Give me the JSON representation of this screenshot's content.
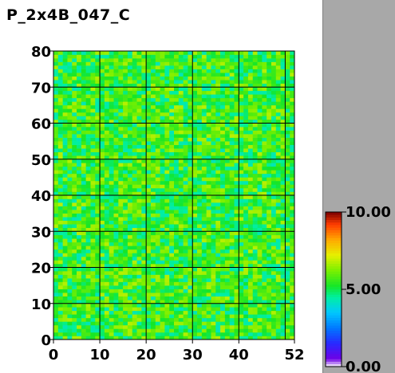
{
  "title": "P_2x4B_047_C",
  "chart_data": {
    "type": "heatmap",
    "title": "P_2x4B_047_C",
    "xlabel": "",
    "ylabel": "",
    "x_range": [
      0,
      52
    ],
    "y_range": [
      0,
      80
    ],
    "x_ticks": [
      0,
      10,
      20,
      30,
      40,
      52
    ],
    "x_tick_labels": [
      "0",
      "10",
      "20",
      "30",
      "40",
      "52"
    ],
    "y_ticks": [
      0,
      10,
      20,
      30,
      40,
      50,
      60,
      70,
      80
    ],
    "y_tick_labels": [
      "0",
      "10",
      "20",
      "30",
      "40",
      "50",
      "60",
      "70",
      "80"
    ],
    "grid": true,
    "grid_x": [
      10,
      20,
      30,
      40,
      50
    ],
    "grid_y": [
      10,
      20,
      30,
      40,
      50,
      60,
      70
    ],
    "cell_count": {
      "columns": 52,
      "rows": 80
    },
    "value_range_estimate": [
      4.0,
      7.0
    ],
    "dominant_value": 5.5,
    "colorbar": {
      "min": 0.0,
      "max": 10.0,
      "labels": [
        "10.00",
        "5.00",
        "0.00"
      ],
      "label_values": [
        10,
        5,
        0
      ]
    }
  },
  "colors": {
    "background": "#ffffff",
    "side_panel": "#a8a8a8",
    "grid": "#000000"
  }
}
